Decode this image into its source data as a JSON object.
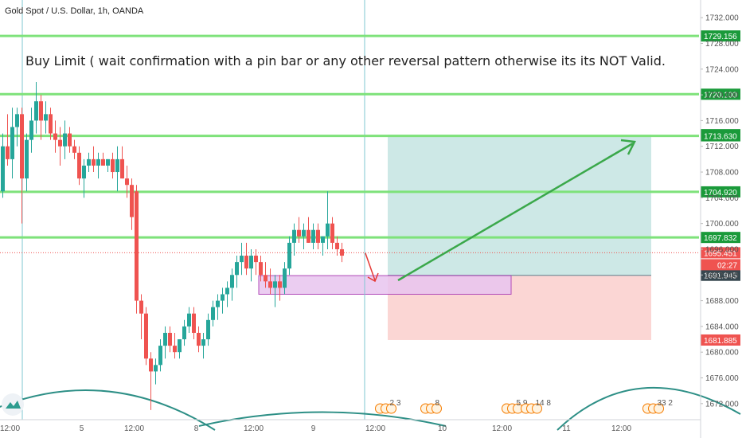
{
  "header": {
    "title": "Gold Spot / U.S. Dollar, 1h, OANDA"
  },
  "annotation": "Buy Limit ( wait confirmation with a pin bar or any other reversal pattern otherwise its its NOT Valid.",
  "countdown": "02:27",
  "colors": {
    "up": "#26a69a",
    "down": "#ef5350",
    "level_line": "#7ee27a",
    "level_box": "#1a9a3a",
    "price_box": "#ef5350",
    "stop_box": "#ef5350",
    "target_box": "#1a9a3a",
    "current_box": "#37474f",
    "profit_zone": "#cde8e6",
    "loss_zone": "#fbd6d4",
    "entry_zone": "#e7c4ee",
    "arrow_up": "#3aa84a",
    "arrow_down": "#e53935",
    "crosshair": "#7fc7d2"
  },
  "chart_data": {
    "type": "candlestick",
    "title": "Gold Spot / U.S. Dollar, 1h, OANDA",
    "ylim": [
      1669.5,
      1734.5
    ],
    "y_ticks": [
      1672,
      1676,
      1680,
      1684,
      1688,
      1692,
      1696,
      1700,
      1704,
      1708,
      1712,
      1716,
      1720,
      1724,
      1728,
      1732
    ],
    "y_tick_labels": [
      "1672.000",
      "1676.000",
      "1680.000",
      "1684.000",
      "1688.000",
      "1692.000",
      "1696.000",
      "1700.000",
      "1704.000",
      "1708.000",
      "1712.000",
      "1716.000",
      "1720.000",
      "1724.000",
      "1728.000",
      "1732.000"
    ],
    "x_labels": [
      {
        "label": "12:00",
        "bar": 1.5
      },
      {
        "label": "5",
        "bar": 16.5
      },
      {
        "label": "12:00",
        "bar": 27.5
      },
      {
        "label": "8",
        "bar": 40.5
      },
      {
        "label": "12:00",
        "bar": 52.5
      },
      {
        "label": "9",
        "bar": 65
      },
      {
        "label": "12:00",
        "bar": 78
      },
      {
        "label": "10",
        "bar": 92
      },
      {
        "label": "12:00",
        "bar": 104.5
      },
      {
        "label": "11",
        "bar": 118
      },
      {
        "label": "12:00",
        "bar": 129.5
      }
    ],
    "candles": [
      [
        1705,
        1714,
        1704,
        1712
      ],
      [
        1712,
        1717,
        1709,
        1710
      ],
      [
        1710,
        1718,
        1707,
        1715
      ],
      [
        1715,
        1718,
        1712,
        1717
      ],
      [
        1717,
        1718,
        1700,
        1707
      ],
      [
        1707,
        1714,
        1705,
        1713
      ],
      [
        1713,
        1718,
        1711,
        1716
      ],
      [
        1716,
        1722,
        1714,
        1719
      ],
      [
        1719,
        1720,
        1713,
        1716
      ],
      [
        1716,
        1719,
        1714,
        1717
      ],
      [
        1717,
        1718,
        1713,
        1714
      ],
      [
        1714,
        1716,
        1711,
        1713
      ],
      [
        1713,
        1715,
        1709,
        1712
      ],
      [
        1712,
        1716,
        1710,
        1714
      ],
      [
        1714,
        1715,
        1711,
        1712
      ],
      [
        1712,
        1713,
        1710,
        1711
      ],
      [
        1711,
        1712,
        1706,
        1707
      ],
      [
        1707,
        1710,
        1704,
        1709
      ],
      [
        1709,
        1711,
        1708,
        1710
      ],
      [
        1710,
        1712,
        1708,
        1709
      ],
      [
        1709,
        1711,
        1707,
        1710
      ],
      [
        1710,
        1711,
        1709,
        1709
      ],
      [
        1709,
        1710,
        1708,
        1710
      ],
      [
        1710,
        1711,
        1707,
        1708
      ],
      [
        1708,
        1712,
        1705,
        1710
      ],
      [
        1710,
        1712,
        1707,
        1707
      ],
      [
        1707,
        1709,
        1704,
        1706
      ],
      [
        1706,
        1707,
        1699,
        1701
      ],
      [
        1705,
        1706,
        1686,
        1688
      ],
      [
        1688,
        1689,
        1682,
        1686
      ],
      [
        1686,
        1687,
        1678,
        1679
      ],
      [
        1679,
        1680,
        1671,
        1677
      ],
      [
        1677,
        1679,
        1675,
        1678
      ],
      [
        1678,
        1682,
        1677,
        1681
      ],
      [
        1681,
        1684,
        1679,
        1683
      ],
      [
        1683,
        1684,
        1680,
        1681
      ],
      [
        1681,
        1683,
        1679,
        1680
      ],
      [
        1680,
        1682,
        1679,
        1682
      ],
      [
        1682,
        1685,
        1681,
        1684
      ],
      [
        1684,
        1687,
        1683,
        1686
      ],
      [
        1686,
        1687,
        1682,
        1683
      ],
      [
        1683,
        1684,
        1680,
        1681
      ],
      [
        1681,
        1683,
        1679,
        1682
      ],
      [
        1682,
        1686,
        1681,
        1685
      ],
      [
        1685,
        1688,
        1684,
        1687
      ],
      [
        1687,
        1689,
        1685,
        1688
      ],
      [
        1688,
        1690,
        1686,
        1689
      ],
      [
        1689,
        1691,
        1687,
        1690
      ],
      [
        1690,
        1693,
        1688,
        1692
      ],
      [
        1692,
        1695,
        1690,
        1694
      ],
      [
        1694,
        1697,
        1692,
        1695
      ],
      [
        1695,
        1697,
        1692,
        1693
      ],
      [
        1693,
        1696,
        1691,
        1695
      ],
      [
        1695,
        1696,
        1692,
        1694
      ],
      [
        1694,
        1695,
        1691,
        1692
      ],
      [
        1692,
        1694,
        1690,
        1691
      ],
      [
        1691,
        1693,
        1689,
        1690
      ],
      [
        1690,
        1692,
        1687,
        1691
      ],
      [
        1691,
        1692,
        1688,
        1690
      ],
      [
        1690,
        1694,
        1689,
        1693
      ],
      [
        1693,
        1698,
        1692,
        1697
      ],
      [
        1697,
        1700,
        1695,
        1699
      ],
      [
        1699,
        1701,
        1697,
        1698
      ],
      [
        1698,
        1700,
        1696,
        1699
      ],
      [
        1699,
        1701,
        1697,
        1697
      ],
      [
        1697,
        1700,
        1696,
        1699
      ],
      [
        1699,
        1700,
        1696,
        1697
      ],
      [
        1697,
        1698,
        1695,
        1698
      ],
      [
        1698,
        1705,
        1696,
        1700
      ],
      [
        1700,
        1701,
        1696,
        1697
      ],
      [
        1697,
        1698,
        1695,
        1696
      ],
      [
        1696,
        1697,
        1694,
        1695
      ]
    ],
    "levels": [
      {
        "price": 1729.156,
        "label": "1729.156",
        "kind": "level"
      },
      {
        "price": 1720.1,
        "label": "1720.100",
        "kind": "level"
      },
      {
        "price": 1713.809,
        "label": "1713.809",
        "kind": "target"
      },
      {
        "price": 1713.63,
        "label": "1713.630",
        "kind": "level"
      },
      {
        "price": 1704.92,
        "label": "1704.920",
        "kind": "level"
      },
      {
        "price": 1697.832,
        "label": "1697.832",
        "kind": "level"
      },
      {
        "price": 1695.451,
        "label": "1695.451",
        "kind": "price"
      },
      {
        "price": 1691.945,
        "label": "1691.945",
        "kind": "current"
      },
      {
        "price": 1681.885,
        "label": "1681.885",
        "kind": "stop"
      }
    ],
    "position": {
      "entry": 1691.945,
      "target": 1713.809,
      "stop": 1681.885
    },
    "entry_zone": {
      "top": 1691.9,
      "bottom": 1689.0
    },
    "event_badges": [
      {
        "bar": 79,
        "count": "2",
        "extra": "3"
      },
      {
        "bar": 88.5,
        "count": "8",
        "extra": ""
      },
      {
        "bar": 105.5,
        "count": "5",
        "extra": "9"
      },
      {
        "bar": 109.5,
        "count": "14",
        "extra": "8"
      },
      {
        "bar": 135,
        "count": "33",
        "extra": "2"
      }
    ]
  }
}
